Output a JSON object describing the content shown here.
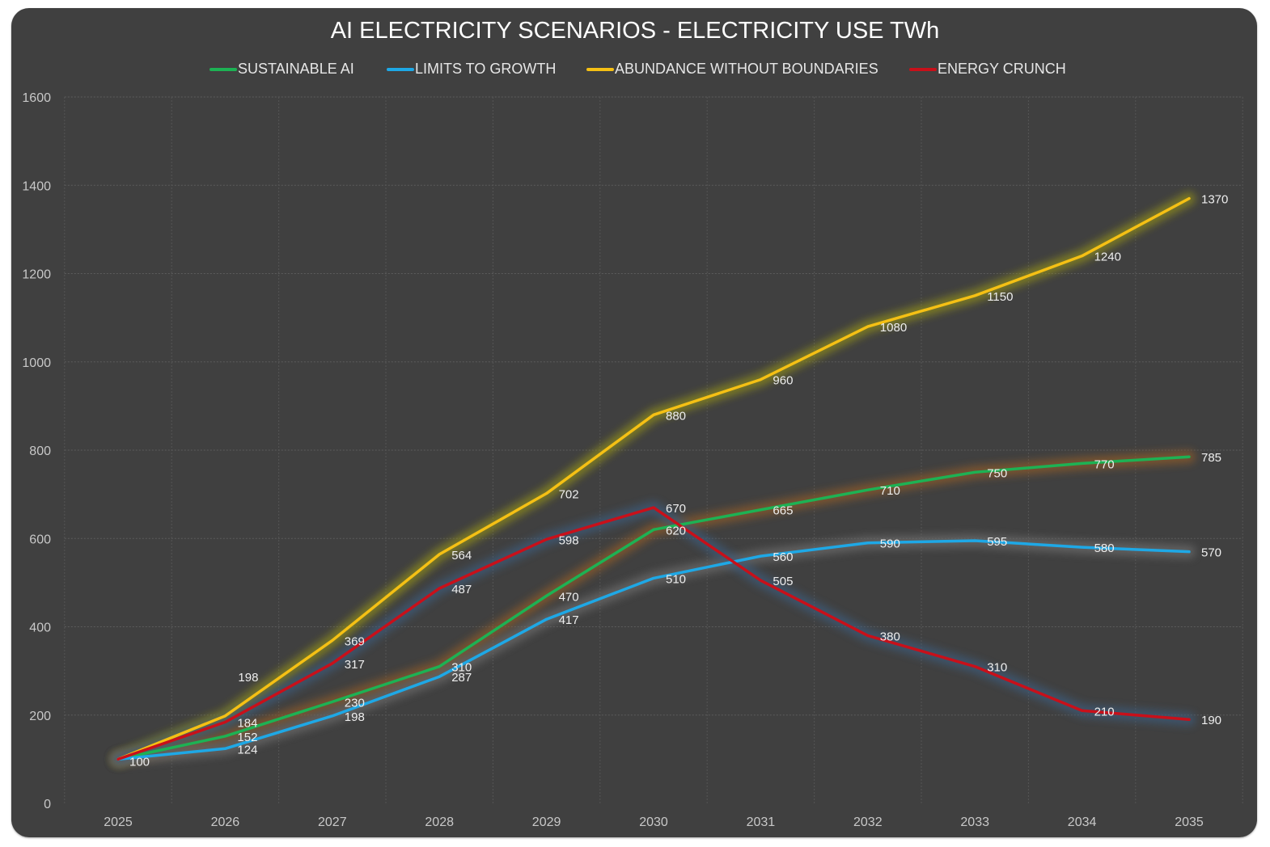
{
  "chart_data": {
    "type": "line",
    "title": "AI ELECTRICITY SCENARIOS - ELECTRICITY USE TWh",
    "xlabel": "",
    "ylabel": "",
    "categories": [
      "2025",
      "2026",
      "2027",
      "2028",
      "2029",
      "2030",
      "2031",
      "2032",
      "2033",
      "2034",
      "2035"
    ],
    "ylim": [
      0,
      1600
    ],
    "yticks": [
      "0",
      "200",
      "400",
      "600",
      "800",
      "1000",
      "1200",
      "1400",
      "1600"
    ],
    "grid": true,
    "legend_position": "top",
    "series": [
      {
        "name": "SUSTAINABLE AI",
        "color": "#1DB254",
        "glow": "#8a5a2a",
        "values": [
          100,
          152,
          230,
          310,
          470,
          620,
          665,
          710,
          750,
          770,
          785
        ]
      },
      {
        "name": "LIMITS TO GROWTH",
        "color": "#1EA8E6",
        "glow": "#6a6a6a",
        "values": [
          100,
          124,
          198,
          287,
          417,
          510,
          560,
          590,
          595,
          580,
          570
        ]
      },
      {
        "name": "ABUNDANCE WITHOUT BOUNDARIES",
        "color": "#F5C014",
        "glow": "#8c8a1a",
        "values": [
          100,
          198,
          369,
          564,
          702,
          880,
          960,
          1080,
          1150,
          1240,
          1370
        ]
      },
      {
        "name": "ENERGY CRUNCH",
        "color": "#C8101A",
        "glow": "#3d5a78",
        "values": [
          100,
          184,
          317,
          487,
          598,
          670,
          505,
          380,
          310,
          210,
          190
        ]
      }
    ],
    "data_labels": {
      "SUSTAINABLE AI": [
        "",
        "152",
        "230",
        "310",
        "470",
        "620",
        "665",
        "710",
        "750",
        "770",
        "785"
      ],
      "LIMITS TO GROWTH": [
        "100",
        "124",
        "198",
        "287",
        "417",
        "510",
        "560",
        "590",
        "595",
        "580",
        "570"
      ],
      "ABUNDANCE WITHOUT BOUNDARIES": [
        "",
        "198",
        "369",
        "564",
        "702",
        "880",
        "960",
        "1080",
        "1150",
        "1240",
        "1370"
      ],
      "ENERGY CRUNCH": [
        "",
        "184",
        "317",
        "487",
        "598",
        "670",
        "505",
        "380",
        "310",
        "210",
        "190"
      ]
    },
    "background": "#404040"
  }
}
